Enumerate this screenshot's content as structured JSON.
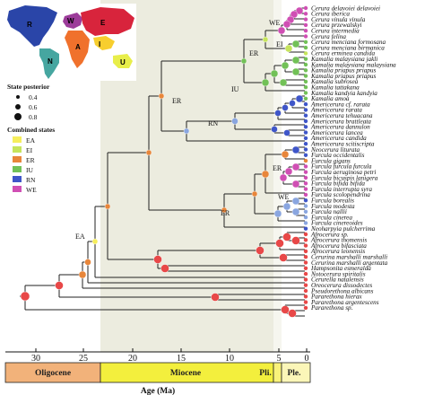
{
  "tips": [
    "Cerura delavoiei delavoiei",
    "Cerura iberica",
    "Cerura vinula vinula",
    "Cerura przewalskyi",
    "Cerura intermedia",
    "Cerura felina",
    "Cerura menciana formosana",
    "Cerura menciana birmanica",
    "Cerura erminea candida",
    "Kamalia malaysiana jakli",
    "Kamalia malaysiana malaysiana",
    "Kamalia priapus priapus",
    "Kamalia priapus priapus",
    "Kamalia subrosea",
    "Kamalia tattakana",
    "Kamalia kandyia kandyia",
    "Kamalia amoa",
    "Americerura cf. rarata",
    "Americerura rarata",
    "Americerura tehuacana",
    "Americerura brattleata",
    "Americerura dannulon",
    "Americerura lancea",
    "Americerura candida",
    "Americerura scitiscripta",
    "Neocerura liturata",
    "Furcula occidentalis",
    "Furcula gigans",
    "Furcula furcula furcula",
    "Furcula aeruginosa petri",
    "Furcula bicuspis lanigera",
    "Furcula bifida bifida",
    "Furcula interrupta syra",
    "Furcula scolopendrina",
    "Furcula borealis",
    "Furcula modesta",
    "Furcula nallii",
    "Furcula cinerea",
    "Furcula cinereoides",
    "Neoharpyia pulcherrima",
    "Afrocerura sp.",
    "Afrocerura thomensis",
    "Afrocerura bifasciata",
    "Afrocerura leonensis",
    "Cerurina marshalli marshalli",
    "Cerurina marshalli argentata",
    "Hampsonita esmeralda",
    "Notocerura spiritalis",
    "Cerurella natalensis",
    "Oreocerura dissodectes",
    "Pseudorethona albicans",
    "Pararethona hierax",
    "Pararethona argentescens",
    "Pararethona sp."
  ],
  "node_labels": [
    "WE",
    "EI",
    "ER",
    "IU",
    "RN",
    "ER",
    "WE",
    "ER",
    "EA"
  ],
  "legend": {
    "posterior_title": "State posterior",
    "posterior_values": [
      "0.4",
      "0.6",
      "0.8"
    ],
    "states_title": "Combined states",
    "states": [
      {
        "code": "EA",
        "color": "#f6ee5c"
      },
      {
        "code": "EI",
        "color": "#c6e45c"
      },
      {
        "code": "ER",
        "color": "#e8863a"
      },
      {
        "code": "IU",
        "color": "#72c157"
      },
      {
        "code": "RN",
        "color": "#3f56c9"
      },
      {
        "code": "WE",
        "color": "#d04fb4"
      }
    ]
  },
  "map_letters": [
    "R",
    "W",
    "E",
    "N",
    "A",
    "I",
    "U"
  ],
  "region_colors": {
    "R": "#2a45a8",
    "N": "#46a6a0",
    "W": "#9c3c9a",
    "E": "#d8243c",
    "A": "#f0712c",
    "I": "#f7ce2e",
    "U": "#e8ee4a"
  },
  "axis": {
    "ticks": [
      "30",
      "25",
      "20",
      "15",
      "10",
      "5",
      "0"
    ],
    "epochs": [
      "Oligocene",
      "Miocene",
      "Pli.",
      "Ple."
    ],
    "epoch_colors": {
      "Oligocene": "#f2b27a",
      "Miocene": "#f3ef3d",
      "Pli.": "#f9f27a",
      "Ple.": "#fbf6b8"
    },
    "title": "Age (Ma)"
  }
}
